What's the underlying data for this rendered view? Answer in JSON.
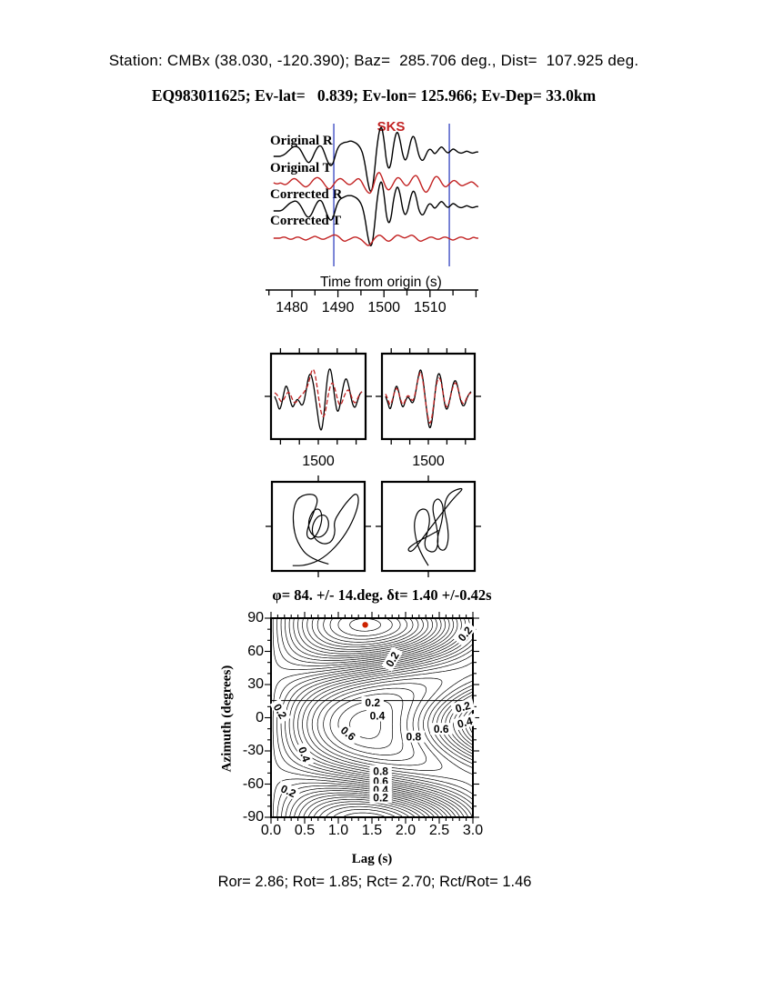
{
  "figure_type": "shear-wave splitting diagnostic figure",
  "header": {
    "line1": "Station: CMBx (38.030, -120.390); Baz=  285.706 deg., Dist=  107.925 deg.",
    "line2": "EQ983011625; Ev-lat=   0.839; Ev-lon= 125.966; Ev-Dep= 33.0km"
  },
  "footer": {
    "text": "Ror= 2.86; Rot= 1.85; Rct= 2.70; Rct/Rot= 1.46"
  },
  "colors": {
    "trace_black": "#000000",
    "trace_red": "#c22222",
    "window_line_blue": "#2233bb",
    "best_dot_red": "#cc2200"
  },
  "chart_data": [
    {
      "type": "line",
      "id": "waveforms",
      "title": "SKS",
      "xlabel": "Time from origin (s)",
      "x_start": 1476,
      "x_step": 0.5,
      "xticks": [
        1480,
        1490,
        1500,
        1510
      ],
      "window_lines": [
        1489.1,
        1514.2
      ],
      "series": [
        {
          "name": "Original R",
          "color": "black",
          "values": [
            0,
            0,
            0,
            0,
            1,
            2,
            4,
            6,
            8,
            9,
            9,
            8,
            5,
            1,
            -3,
            -6,
            -5,
            -1,
            4,
            8,
            10,
            9,
            4,
            -2,
            -7,
            -9,
            -6,
            2,
            8,
            11,
            12,
            13,
            13,
            14,
            14,
            13,
            12,
            10,
            7,
            1,
            -10,
            -24,
            -33,
            -30,
            -12,
            10,
            24,
            28,
            16,
            -4,
            -12,
            -8,
            8,
            20,
            23,
            15,
            3,
            -4,
            -2,
            8,
            17,
            19,
            12,
            2,
            -3,
            -4,
            0,
            5,
            7,
            5,
            2,
            4,
            7,
            9,
            7,
            4,
            3,
            5,
            7,
            6,
            4,
            3,
            3,
            4,
            5,
            4,
            3,
            3,
            4,
            4
          ]
        },
        {
          "name": "Original T",
          "color": "red",
          "values": [
            0,
            -1,
            -1,
            0,
            -1,
            -2,
            -1,
            1,
            3,
            4,
            3,
            1,
            -1,
            -3,
            -4,
            -3,
            -1,
            2,
            4,
            5,
            4,
            2,
            -1,
            -4,
            -6,
            -5,
            -2,
            1,
            3,
            4,
            3,
            1,
            -1,
            -2,
            -1,
            1,
            3,
            4,
            2,
            -2,
            -6,
            -9,
            -10,
            -6,
            2,
            8,
            10,
            6,
            0,
            -5,
            -7,
            -5,
            -1,
            3,
            5,
            4,
            1,
            -2,
            -3,
            -1,
            3,
            6,
            7,
            4,
            -1,
            -6,
            -9,
            -8,
            -4,
            1,
            5,
            6,
            4,
            0,
            -3,
            -4,
            -2,
            0,
            2,
            2,
            0,
            -2,
            -3,
            -2,
            -1,
            0,
            1,
            0,
            -2,
            -4
          ]
        },
        {
          "name": "Corrected R",
          "color": "black",
          "values": [
            0,
            0,
            0,
            0,
            1,
            3,
            5,
            7,
            8,
            9,
            9,
            7,
            4,
            0,
            -4,
            -6,
            -5,
            -1,
            4,
            8,
            10,
            9,
            4,
            -2,
            -7,
            -9,
            -6,
            2,
            8,
            11,
            12,
            13,
            14,
            14,
            14,
            13,
            12,
            10,
            7,
            1,
            -10,
            -24,
            -33,
            -30,
            -12,
            10,
            24,
            28,
            16,
            -4,
            -12,
            -8,
            8,
            19,
            23,
            16,
            3,
            -4,
            -2,
            7,
            16,
            19,
            13,
            2,
            -3,
            -4,
            0,
            5,
            7,
            5,
            2,
            4,
            7,
            9,
            7,
            4,
            3,
            5,
            7,
            6,
            4,
            3,
            3,
            4,
            5,
            4,
            3,
            3,
            4,
            4
          ]
        },
        {
          "name": "Corrected T",
          "color": "red",
          "values": [
            0,
            0,
            0,
            0,
            1,
            1,
            0,
            -1,
            -1,
            0,
            1,
            1,
            0,
            -1,
            -2,
            -1,
            0,
            1,
            2,
            1,
            0,
            -1,
            -1,
            0,
            1,
            2,
            3,
            3,
            2,
            0,
            -2,
            -3,
            -2,
            -1,
            0,
            1,
            1,
            0,
            -1,
            -3,
            -5,
            -7,
            -6,
            -3,
            0,
            2,
            3,
            2,
            0,
            -2,
            -3,
            -2,
            0,
            2,
            3,
            2,
            1,
            0,
            1,
            2,
            3,
            2,
            0,
            -2,
            -3,
            -2,
            -1,
            0,
            1,
            1,
            0,
            -1,
            -1,
            0,
            1,
            1,
            0,
            -1,
            -2,
            -1,
            0,
            1,
            1,
            0,
            -1,
            -1,
            0,
            1,
            0,
            0
          ]
        }
      ]
    },
    {
      "type": "line",
      "id": "window-left",
      "xticks": [
        "1500"
      ],
      "series": [
        {
          "name": "R windowed",
          "color": "black",
          "values": [
            0,
            -4,
            -12,
            -8,
            2,
            10,
            6,
            -4,
            -10,
            -6,
            -2,
            -4,
            -8,
            -6,
            4,
            16,
            20,
            14,
            2,
            -12,
            -26,
            -30,
            -16,
            6,
            22,
            24,
            12,
            -4,
            -14,
            -10,
            2,
            12,
            16,
            10,
            0,
            -8,
            -10,
            -4,
            2,
            4
          ]
        },
        {
          "name": "T windowed",
          "color": "red",
          "values": [
            3,
            2,
            -2,
            -5,
            -3,
            1,
            4,
            2,
            -3,
            -6,
            -4,
            -1,
            1,
            3,
            6,
            10,
            18,
            24,
            20,
            8,
            -6,
            -16,
            -18,
            -10,
            2,
            10,
            12,
            6,
            -2,
            -8,
            -6,
            0,
            4,
            6,
            2,
            -4,
            -6,
            -2,
            2,
            4
          ]
        }
      ]
    },
    {
      "type": "line",
      "id": "window-right",
      "xticks": [
        "1500"
      ],
      "series": [
        {
          "name": "R corrected windowed",
          "color": "black",
          "values": [
            0,
            -5,
            -12,
            -6,
            4,
            10,
            4,
            -6,
            -10,
            -4,
            0,
            -2,
            -6,
            -4,
            6,
            18,
            24,
            16,
            0,
            -16,
            -28,
            -24,
            -8,
            10,
            20,
            18,
            6,
            -8,
            -12,
            -6,
            4,
            12,
            14,
            8,
            -2,
            -8,
            -8,
            -2,
            2,
            4
          ]
        },
        {
          "name": "T corrected windowed",
          "color": "red",
          "values": [
            2,
            -2,
            -8,
            -4,
            3,
            8,
            3,
            -4,
            -8,
            -3,
            1,
            0,
            -4,
            -2,
            7,
            16,
            22,
            14,
            -2,
            -14,
            -24,
            -20,
            -6,
            8,
            16,
            15,
            5,
            -6,
            -10,
            -5,
            3,
            10,
            12,
            7,
            -1,
            -6,
            -6,
            -1,
            2,
            3
          ]
        }
      ]
    },
    {
      "type": "scatter",
      "id": "particle-left",
      "points": [
        [
          0.62,
          0.04
        ],
        [
          0.4,
          0.1
        ],
        [
          0.25,
          0.3
        ],
        [
          0.2,
          0.55
        ],
        [
          0.22,
          0.78
        ],
        [
          0.3,
          0.88
        ],
        [
          0.45,
          0.9
        ],
        [
          0.5,
          0.82
        ],
        [
          0.45,
          0.68
        ],
        [
          0.38,
          0.5
        ],
        [
          0.36,
          0.38
        ],
        [
          0.42,
          0.33
        ],
        [
          0.5,
          0.42
        ],
        [
          0.55,
          0.6
        ],
        [
          0.52,
          0.72
        ],
        [
          0.44,
          0.7
        ],
        [
          0.38,
          0.56
        ],
        [
          0.4,
          0.42
        ],
        [
          0.5,
          0.35
        ],
        [
          0.6,
          0.42
        ],
        [
          0.63,
          0.55
        ],
        [
          0.58,
          0.65
        ],
        [
          0.48,
          0.62
        ],
        [
          0.42,
          0.48
        ],
        [
          0.45,
          0.35
        ],
        [
          0.55,
          0.28
        ],
        [
          0.65,
          0.3
        ],
        [
          0.7,
          0.42
        ],
        [
          0.68,
          0.55
        ],
        [
          0.75,
          0.68
        ],
        [
          0.85,
          0.82
        ],
        [
          0.95,
          0.92
        ],
        [
          0.98,
          0.8
        ],
        [
          0.9,
          0.55
        ],
        [
          0.75,
          0.3
        ],
        [
          0.55,
          0.1
        ],
        [
          0.35,
          0.02
        ],
        [
          0.2,
          0.02
        ]
      ]
    },
    {
      "type": "scatter",
      "id": "particle-right",
      "points": [
        [
          0.5,
          0.02
        ],
        [
          0.42,
          0.15
        ],
        [
          0.35,
          0.35
        ],
        [
          0.33,
          0.55
        ],
        [
          0.38,
          0.7
        ],
        [
          0.48,
          0.72
        ],
        [
          0.52,
          0.6
        ],
        [
          0.5,
          0.45
        ],
        [
          0.45,
          0.3
        ],
        [
          0.48,
          0.2
        ],
        [
          0.58,
          0.18
        ],
        [
          0.62,
          0.3
        ],
        [
          0.6,
          0.5
        ],
        [
          0.55,
          0.68
        ],
        [
          0.56,
          0.8
        ],
        [
          0.62,
          0.85
        ],
        [
          0.68,
          0.75
        ],
        [
          0.66,
          0.55
        ],
        [
          0.6,
          0.35
        ],
        [
          0.62,
          0.22
        ],
        [
          0.7,
          0.2
        ],
        [
          0.74,
          0.35
        ],
        [
          0.72,
          0.55
        ],
        [
          0.68,
          0.72
        ],
        [
          0.72,
          0.88
        ],
        [
          0.82,
          0.95
        ],
        [
          0.92,
          0.97
        ],
        [
          0.8,
          0.85
        ],
        [
          0.65,
          0.65
        ],
        [
          0.5,
          0.45
        ],
        [
          0.38,
          0.28
        ],
        [
          0.3,
          0.18
        ],
        [
          0.25,
          0.22
        ],
        [
          0.35,
          0.3
        ],
        [
          0.5,
          0.38
        ],
        [
          0.62,
          0.45
        ]
      ]
    },
    {
      "type": "contour",
      "id": "error-surface",
      "title": "φ= 84. +/- 14.deg. δt= 1.40 +/-0.42s",
      "xlabel": "Lag (s)",
      "ylabel": "Azimuth (degrees)",
      "xlim": [
        0,
        3
      ],
      "ylim": [
        -90,
        90
      ],
      "xticks": [
        "0.0",
        "0.5",
        "1.0",
        "1.5",
        "2.0",
        "2.5",
        "3.0"
      ],
      "yticks": [
        90,
        60,
        30,
        0,
        -30,
        -60,
        -90
      ],
      "x_minor": 0.1,
      "y_minor": 10,
      "best_solution": {
        "lag_s": 1.4,
        "azimuth_deg": 84
      },
      "horizontal_line_az": 15.5,
      "surface_model": {
        "formula": "E = 0.5*(1 - cos(2d)*sin(pi*x/2.8)) + 0.15*(1 - cos(4d))*sin(pi*x/5.2)^2, d = (az - 84) deg",
        "levels_count": 30
      },
      "contour_labels": [
        {
          "v": "0.2",
          "lag": 1.8,
          "az": 53,
          "rot": -60,
          "box": false
        },
        {
          "v": "0.2",
          "lag": 2.88,
          "az": 76,
          "rot": -50,
          "box": false
        },
        {
          "v": "0.2",
          "lag": 1.51,
          "az": 14,
          "rot": 0,
          "box": true
        },
        {
          "v": "0.4",
          "lag": 1.58,
          "az": 2,
          "rot": 0,
          "box": true
        },
        {
          "v": "0.2",
          "lag": 2.85,
          "az": 10,
          "rot": -15,
          "box": true
        },
        {
          "v": "0.4",
          "lag": 2.88,
          "az": -4,
          "rot": -15,
          "box": true
        },
        {
          "v": "0.6",
          "lag": 2.53,
          "az": -10,
          "rot": 0,
          "box": true
        },
        {
          "v": "0.8",
          "lag": 2.12,
          "az": -17,
          "rot": 0,
          "box": true
        },
        {
          "v": "0.6",
          "lag": 1.15,
          "az": -14,
          "rot": 40,
          "box": false
        },
        {
          "v": "0.2",
          "lag": 0.14,
          "az": 6,
          "rot": 60,
          "box": false
        },
        {
          "v": "0.4",
          "lag": 0.5,
          "az": -33,
          "rot": 70,
          "box": false
        },
        {
          "v": "0.8",
          "lag": 1.63,
          "az": -48,
          "rot": 0,
          "box": true
        },
        {
          "v": "0.6",
          "lag": 1.63,
          "az": -57,
          "rot": 0,
          "box": true
        },
        {
          "v": "0.4",
          "lag": 1.63,
          "az": -65,
          "rot": 0,
          "box": true
        },
        {
          "v": "0.2",
          "lag": 1.63,
          "az": -72,
          "rot": 0,
          "box": true
        },
        {
          "v": "0.2",
          "lag": 0.26,
          "az": -66,
          "rot": 25,
          "box": false
        }
      ]
    }
  ]
}
